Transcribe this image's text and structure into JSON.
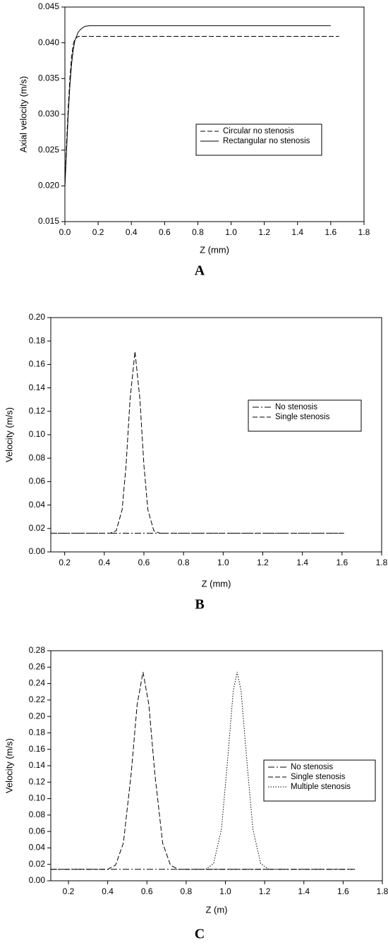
{
  "chart_data": [
    {
      "type": "line",
      "caption": "A",
      "x_label": "Z (mm)",
      "y_label": "Axial velocity (m/s)",
      "xlim": [
        0,
        1.8
      ],
      "ylim": [
        0.015,
        0.045
      ],
      "xticks": [
        {
          "value": 0,
          "label": "0.0"
        },
        0.2,
        0.4,
        0.6,
        0.8,
        {
          "value": 1,
          "label": "1.0"
        },
        1.2,
        1.4,
        1.6,
        1.8
      ],
      "yticks": [
        0.015,
        {
          "value": 0.02,
          "label": "0.020"
        },
        0.025,
        {
          "value": 0.03,
          "label": "0.030"
        },
        0.035,
        {
          "value": 0.04,
          "label": "0.040"
        },
        0.045
      ],
      "series": [
        {
          "name": "Circular no stenosis",
          "color": "#000000",
          "dash": "dashed",
          "x": [
            0,
            0.01,
            0.02,
            0.03,
            0.04,
            0.05,
            0.06,
            0.08,
            0.1,
            0.2,
            1.65
          ],
          "values": [
            0.02,
            0.026,
            0.031,
            0.035,
            0.038,
            0.0398,
            0.0405,
            0.0409,
            0.0409,
            0.0409,
            0.0409
          ]
        },
        {
          "name": "Rectangular no stenosis",
          "color": "#000000",
          "dash": "solid",
          "x": [
            0,
            0.01,
            0.02,
            0.03,
            0.04,
            0.05,
            0.06,
            0.08,
            0.1,
            0.12,
            0.15,
            0.2,
            1.6
          ],
          "values": [
            0.0198,
            0.025,
            0.03,
            0.034,
            0.037,
            0.039,
            0.0403,
            0.0415,
            0.042,
            0.0423,
            0.0424,
            0.0424,
            0.0424
          ]
        }
      ]
    },
    {
      "type": "line",
      "caption": "B",
      "x_label": "Z (mm)",
      "y_label": "Velocity (m/s)",
      "xlim": [
        0.13,
        1.8
      ],
      "ylim": [
        0,
        0.2
      ],
      "xticks": [
        0.2,
        0.4,
        0.6,
        0.8,
        {
          "value": 1,
          "label": "1.0"
        },
        1.2,
        1.4,
        1.6,
        1.8
      ],
      "yticks": [
        {
          "value": 0,
          "label": "0.00"
        },
        0.02,
        0.04,
        0.06,
        0.08,
        {
          "value": 0.1,
          "label": "0.10"
        },
        0.12,
        0.14,
        0.16,
        0.18,
        {
          "value": 0.2,
          "label": "0.20"
        }
      ],
      "series": [
        {
          "name": "No stenosis",
          "color": "#000000",
          "dash": "dashdot",
          "x": [
            0.13,
            1.61
          ],
          "values": [
            0.016,
            0.016
          ]
        },
        {
          "name": "Single stenosis",
          "color": "#000000",
          "dash": "dashed",
          "x": [
            0.13,
            0.43,
            0.46,
            0.49,
            0.51,
            0.53,
            0.555,
            0.58,
            0.6,
            0.62,
            0.65,
            0.68,
            1.61
          ],
          "values": [
            0.016,
            0.016,
            0.018,
            0.036,
            0.074,
            0.13,
            0.171,
            0.13,
            0.074,
            0.036,
            0.018,
            0.016,
            0.016
          ]
        }
      ]
    },
    {
      "type": "line",
      "caption": "C",
      "x_label": "Z (m)",
      "y_label": "Velocity (m/s)",
      "xlim": [
        0.11,
        1.8
      ],
      "ylim": [
        0,
        0.28
      ],
      "xticks": [
        0.2,
        0.4,
        0.6,
        0.8,
        {
          "value": 1,
          "label": "1.0"
        },
        1.2,
        1.4,
        1.6,
        1.8
      ],
      "yticks": [
        {
          "value": 0,
          "label": "0.00"
        },
        0.02,
        0.04,
        0.06,
        0.08,
        {
          "value": 0.1,
          "label": "0.10"
        },
        0.12,
        0.14,
        0.16,
        0.18,
        {
          "value": 0.2,
          "label": "0.20"
        },
        0.22,
        0.24,
        0.26,
        0.28
      ],
      "series": [
        {
          "name": "No stenosis",
          "color": "#000000",
          "dash": "dashdot",
          "x": [
            0.11,
            1.66
          ],
          "values": [
            0.014,
            0.014
          ]
        },
        {
          "name": "Single stenosis",
          "color": "#000000",
          "dash": "dashed",
          "x": [
            0.11,
            0.4,
            0.44,
            0.48,
            0.52,
            0.55,
            0.58,
            0.61,
            0.64,
            0.68,
            0.72,
            0.76,
            1.66
          ],
          "values": [
            0.014,
            0.014,
            0.019,
            0.046,
            0.131,
            0.214,
            0.254,
            0.214,
            0.131,
            0.046,
            0.019,
            0.014,
            0.014
          ]
        },
        {
          "name": "Multiple stenosis",
          "color": "#000000",
          "dash": "dotted",
          "x": [
            0.9,
            0.94,
            0.98,
            1.01,
            1.04,
            1.06,
            1.08,
            1.11,
            1.14,
            1.18,
            1.22
          ],
          "values": [
            0.014,
            0.021,
            0.063,
            0.144,
            0.231,
            0.254,
            0.231,
            0.144,
            0.063,
            0.021,
            0.014
          ]
        }
      ]
    }
  ]
}
